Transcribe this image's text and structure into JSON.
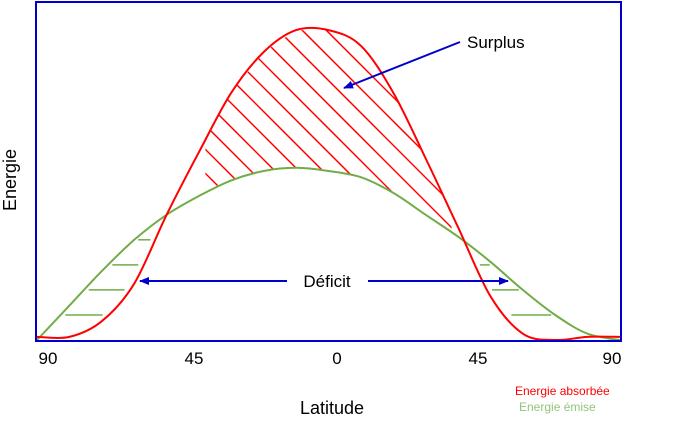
{
  "chart_data": {
    "type": "line",
    "xlabel": "Latitude",
    "ylabel": "Energie",
    "x_ticks": [
      "90",
      "45",
      "0",
      "45",
      "90"
    ],
    "series": [
      {
        "name": "Energie absorbée",
        "color": "#ff0000",
        "x": [
          -90,
          -80,
          -70,
          -60,
          -50,
          -40,
          -30,
          -20,
          -10,
          0,
          10,
          20,
          30,
          40,
          50,
          60,
          70,
          80,
          90
        ],
        "y": [
          0.01,
          0.01,
          0.06,
          0.18,
          0.4,
          0.6,
          0.79,
          0.92,
          0.99,
          0.99,
          0.94,
          0.79,
          0.58,
          0.36,
          0.14,
          0.02,
          0.0,
          0.01,
          0.01
        ]
      },
      {
        "name": "Energie émise",
        "color": "#70ad47",
        "x": [
          -90,
          -80,
          -70,
          -60,
          -50,
          -40,
          -30,
          -20,
          -10,
          0,
          10,
          20,
          30,
          40,
          50,
          60,
          70,
          80,
          90
        ],
        "y": [
          0.0,
          0.11,
          0.22,
          0.32,
          0.4,
          0.46,
          0.51,
          0.54,
          0.55,
          0.54,
          0.52,
          0.47,
          0.4,
          0.33,
          0.25,
          0.16,
          0.08,
          0.02,
          0.0
        ]
      }
    ],
    "annotations": {
      "surplus": "Surplus",
      "deficit": "Déficit"
    },
    "legend_position": "bottom-right",
    "colors": {
      "frame": "#0000cc",
      "arrow": "#0000cc",
      "absorbed": "#ff0000",
      "emitted": "#70ad47",
      "emitted_legend": "#92c47d"
    }
  }
}
